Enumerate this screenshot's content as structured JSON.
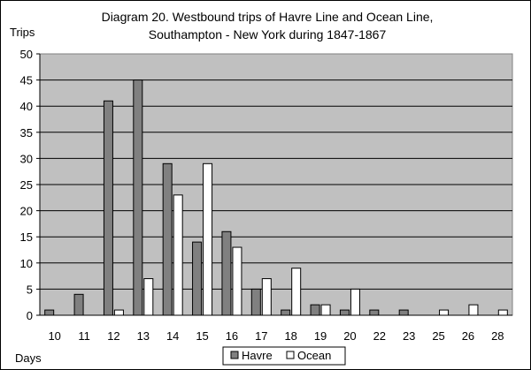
{
  "chart_data": {
    "type": "bar",
    "title_lines": [
      "Diagram 20. Westbound trips of Havre Line and Ocean Line,",
      "Southampton - New York during 1847-1867"
    ],
    "xlabel": "Days",
    "ylabel": "Trips",
    "categories": [
      "10",
      "11",
      "12",
      "13",
      "14",
      "15",
      "16",
      "17",
      "18",
      "19",
      "20",
      "22",
      "23",
      "25",
      "26",
      "28"
    ],
    "ylim": [
      0,
      50
    ],
    "yticks": [
      0,
      5,
      10,
      15,
      20,
      25,
      30,
      35,
      40,
      45,
      50
    ],
    "grid": true,
    "legend_position": "bottom",
    "plot_background": "#c0c0c0",
    "series": [
      {
        "name": "Havre",
        "color": "#808080",
        "values": [
          1,
          4,
          41,
          45,
          29,
          14,
          16,
          5,
          1,
          2,
          1,
          1,
          1,
          0,
          0,
          0
        ]
      },
      {
        "name": "Ocean",
        "color": "#ffffff",
        "values": [
          0,
          0,
          1,
          7,
          23,
          29,
          13,
          7,
          9,
          2,
          5,
          0,
          0,
          1,
          2,
          1
        ]
      }
    ]
  }
}
